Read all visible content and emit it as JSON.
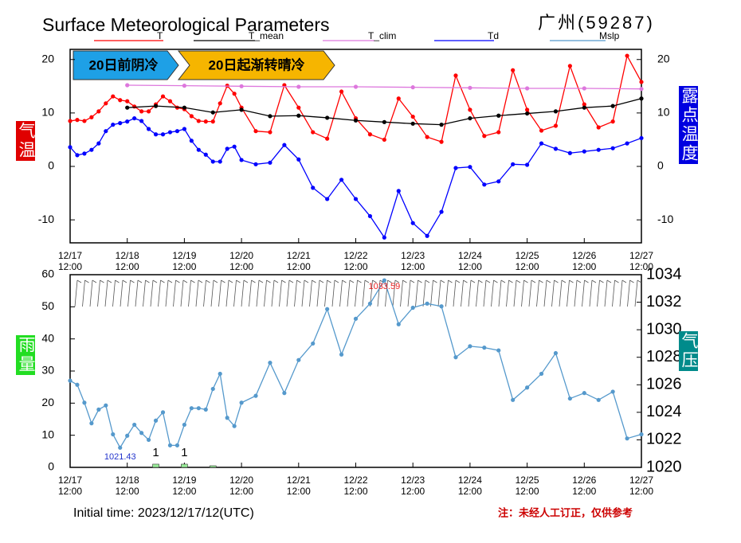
{
  "header": {
    "title": "Surface Meteorological Parameters",
    "station": "广州(59287)",
    "initial_time": "Initial time: 2023/12/17/12(UTC)",
    "note": "注：未经人工订正，仅供参考",
    "banners": [
      "20日前阴冷",
      "20日起渐转晴冷"
    ]
  },
  "chart_data": [
    {
      "type": "line",
      "ylabel": "气温",
      "y2label": "露点温度",
      "xlim": [
        "12/17 12:00",
        "12/27 12:00"
      ],
      "xticks": [
        "12/17 12:00",
        "12/18 12:00",
        "12/19 12:00",
        "12/20 12:00",
        "12/21 12:00",
        "12/22 12:00",
        "12/23 12:00",
        "12/24 12:00",
        "12/25 12:00",
        "12/26 12:00",
        "12/27 12:00"
      ],
      "ylim": [
        -14.3,
        21.9
      ],
      "yticks": [
        -10,
        0,
        10,
        20
      ],
      "y2lim": [
        -14.3,
        21.9
      ],
      "y2ticks": [
        -10,
        0,
        10,
        20
      ],
      "x": [
        "12/17 12:00",
        "12/17 15:00",
        "12/17 18:00",
        "12/17 21:00",
        "12/18 00:00",
        "12/18 03:00",
        "12/18 06:00",
        "12/18 09:00",
        "12/18 12:00",
        "12/18 15:00",
        "12/18 18:00",
        "12/18 21:00",
        "12/19 00:00",
        "12/19 03:00",
        "12/19 06:00",
        "12/19 09:00",
        "12/19 12:00",
        "12/19 15:00",
        "12/19 18:00",
        "12/19 21:00",
        "12/20 00:00",
        "12/20 03:00",
        "12/20 06:00",
        "12/20 09:00",
        "12/20 12:00",
        "12/20 18:00",
        "12/21 00:00",
        "12/21 06:00",
        "12/21 12:00",
        "12/21 18:00",
        "12/22 00:00",
        "12/22 06:00",
        "12/22 12:00",
        "12/22 18:00",
        "12/23 00:00",
        "12/23 06:00",
        "12/23 12:00",
        "12/23 18:00",
        "12/24 00:00",
        "12/24 06:00",
        "12/24 12:00",
        "12/24 18:00",
        "12/25 00:00",
        "12/25 06:00",
        "12/25 12:00",
        "12/25 18:00",
        "12/26 00:00",
        "12/26 06:00",
        "12/26 12:00",
        "12/26 18:00",
        "12/27 00:00",
        "12/27 06:00",
        "12/27 12:00"
      ],
      "series": [
        {
          "name": "T",
          "color": "#ff0000",
          "values": [
            8.5,
            8.7,
            8.5,
            9.2,
            10.3,
            11.8,
            13.1,
            12.4,
            12.2,
            11.2,
            10.3,
            10.3,
            11.6,
            13.1,
            12.2,
            11,
            10.7,
            9.4,
            8.5,
            8.4,
            8.4,
            11.8,
            15.1,
            13.6,
            11,
            6.6,
            6.4,
            15.2,
            11,
            6.4,
            5.2,
            14,
            9,
            6,
            5,
            12.7,
            9.3,
            5.5,
            4.6,
            17,
            10.6,
            5.7,
            6.4,
            18,
            10.6,
            6.7,
            7.6,
            18.8,
            11.6,
            7.3,
            8.4,
            20.7,
            15.8
          ]
        },
        {
          "name": "T_mean",
          "color": "#000000",
          "x": [
            "12/18 12:00",
            "12/19 00:00",
            "12/19 12:00",
            "12/20 00:00",
            "12/20 12:00",
            "12/21 00:00",
            "12/21 12:00",
            "12/22 00:00",
            "12/22 12:00",
            "12/23 00:00",
            "12/23 12:00",
            "12/24 00:00",
            "12/24 12:00",
            "12/25 00:00",
            "12/25 12:00",
            "12/26 00:00",
            "12/26 12:00",
            "12/27 00:00",
            "12/27 12:00"
          ],
          "values": [
            11,
            11.3,
            11,
            10.1,
            10.6,
            9.4,
            9.5,
            9.1,
            8.6,
            8.3,
            8,
            7.8,
            9,
            9.5,
            9.9,
            10.3,
            11,
            11.3,
            12.7
          ]
        },
        {
          "name": "T_clim",
          "color": "#dd77dd",
          "x": [
            "12/18 12:00",
            "12/19 12:00",
            "12/20 12:00",
            "12/21 12:00",
            "12/22 12:00",
            "12/23 12:00",
            "12/24 12:00",
            "12/25 12:00",
            "12/26 12:00",
            "12/27 12:00"
          ],
          "values": [
            15.2,
            15.1,
            15,
            14.9,
            14.9,
            14.8,
            14.7,
            14.6,
            14.6,
            14.5
          ]
        },
        {
          "name": "Td",
          "color": "#0000ff",
          "values": [
            3.6,
            2.1,
            2.4,
            3.1,
            4.3,
            6.6,
            7.8,
            8.1,
            8.4,
            9,
            8.5,
            7,
            6,
            6,
            6.4,
            6.6,
            7,
            4.8,
            3.1,
            2.2,
            0.9,
            0.9,
            3.3,
            3.7,
            1.2,
            0.4,
            0.7,
            4,
            1.3,
            -4,
            -6.1,
            -2.5,
            -6.1,
            -9.3,
            -13.3,
            -4.6,
            -10.6,
            -13,
            -8.5,
            -0.3,
            -0.1,
            -3.4,
            -2.8,
            0.4,
            0.3,
            4.3,
            3.3,
            2.5,
            2.8,
            3.1,
            3.4,
            4.3,
            5.3
          ]
        }
      ]
    },
    {
      "type": "line",
      "ylabel": "雨量",
      "y2label": "气压",
      "xlim": [
        "12/17 12:00",
        "12/27 12:00"
      ],
      "xticks": [
        "12/17 12:00",
        "12/18 12:00",
        "12/19 12:00",
        "12/20 12:00",
        "12/21 12:00",
        "12/22 12:00",
        "12/23 12:00",
        "12/24 12:00",
        "12/25 12:00",
        "12/26 12:00",
        "12/27 12:00"
      ],
      "ylim": [
        0,
        60
      ],
      "yticks": [
        0,
        10,
        20,
        30,
        40,
        50,
        60
      ],
      "y2lim": [
        1020,
        1034
      ],
      "y2ticks": [
        1020,
        1022,
        1024,
        1026,
        1028,
        1030,
        1032,
        1034
      ],
      "x": [
        "12/17 12:00",
        "12/17 15:00",
        "12/17 18:00",
        "12/17 21:00",
        "12/18 00:00",
        "12/18 03:00",
        "12/18 06:00",
        "12/18 09:00",
        "12/18 12:00",
        "12/18 15:00",
        "12/18 18:00",
        "12/18 21:00",
        "12/19 00:00",
        "12/19 03:00",
        "12/19 06:00",
        "12/19 09:00",
        "12/19 12:00",
        "12/19 15:00",
        "12/19 18:00",
        "12/19 21:00",
        "12/20 00:00",
        "12/20 03:00",
        "12/20 06:00",
        "12/20 09:00",
        "12/20 12:00",
        "12/20 18:00",
        "12/21 00:00",
        "12/21 06:00",
        "12/21 12:00",
        "12/21 18:00",
        "12/22 00:00",
        "12/22 06:00",
        "12/22 12:00",
        "12/22 18:00",
        "12/23 00:00",
        "12/23 06:00",
        "12/23 12:00",
        "12/23 18:00",
        "12/24 00:00",
        "12/24 06:00",
        "12/24 12:00",
        "12/24 18:00",
        "12/25 00:00",
        "12/25 06:00",
        "12/25 12:00",
        "12/25 18:00",
        "12/26 00:00",
        "12/26 06:00",
        "12/26 12:00",
        "12/26 18:00",
        "12/27 00:00",
        "12/27 06:00",
        "12/27 12:00"
      ],
      "series": [
        {
          "type": "bar",
          "color": "#99ee99",
          "x": [
            "12/19 00:00",
            "12/19 12:00",
            "12/20 00:00"
          ],
          "values": [
            1,
            1,
            0.5
          ],
          "value_labels": [
            "1",
            "1",
            null
          ]
        },
        {
          "name": "Mslp",
          "color": "#5599cc",
          "axis": "y2",
          "values": [
            1026.3,
            1026,
            1024.7,
            1023.2,
            1024.2,
            1024.5,
            1022.4,
            1021.43,
            1022.3,
            1023.1,
            1022.5,
            1022,
            1023.4,
            1024,
            1021.6,
            1021.6,
            1023.1,
            1024.3,
            1024.3,
            1024.2,
            1025.7,
            1026.8,
            1023.6,
            1023,
            1024.7,
            1025.2,
            1027.6,
            1025.4,
            1027.8,
            1029,
            1031.5,
            1028.2,
            1030.8,
            1031.9,
            1033.59,
            1030.4,
            1031.6,
            1031.9,
            1031.7,
            1028,
            1028.8,
            1028.7,
            1028.5,
            1024.9,
            1025.8,
            1026.8,
            1028.3,
            1025,
            1025.4,
            1024.9,
            1025.5,
            1022.1,
            1022.4
          ],
          "value_labels": [
            null,
            null,
            null,
            null,
            null,
            null,
            null,
            "1021.43",
            null,
            null,
            null,
            null,
            null,
            null,
            null,
            null,
            null,
            null,
            null,
            null,
            null,
            null,
            null,
            null,
            null,
            null,
            null,
            null,
            null,
            null,
            null,
            null,
            null,
            null,
            "1033.59",
            null,
            null,
            null,
            null,
            null,
            null,
            null,
            null,
            null,
            null,
            null,
            null,
            null,
            null,
            null,
            null,
            null,
            null
          ]
        }
      ]
    }
  ]
}
